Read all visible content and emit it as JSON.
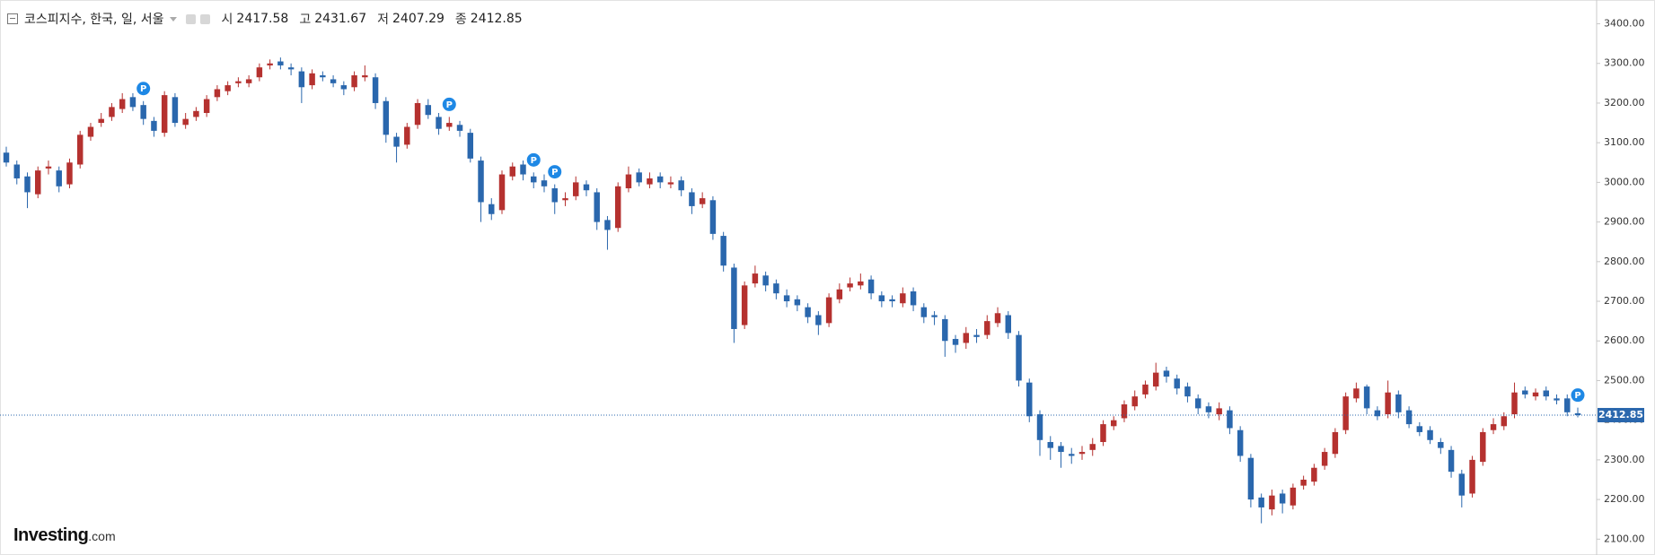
{
  "chart_data": {
    "type": "candlestick",
    "title": "코스피지수, 한국, 일, 서울",
    "header_labels": {
      "open": "시",
      "high": "고",
      "low": "저",
      "close": "종"
    },
    "up_color": "#b5312f",
    "down_color": "#2a67ad",
    "marker_color": "#1e88e5",
    "last_price_color": "#2a67ad",
    "ylim": [
      2060,
      3460
    ],
    "yticks": [
      {
        "value": 2100,
        "label": "2100.00"
      },
      {
        "value": 2200,
        "label": "2200.00"
      },
      {
        "value": 2300,
        "label": "2300.00"
      },
      {
        "value": 2400,
        "label": "2400.00"
      },
      {
        "value": 2500,
        "label": "2500.00"
      },
      {
        "value": 2600,
        "label": "2600.00"
      },
      {
        "value": 2700,
        "label": "2700.00"
      },
      {
        "value": 2800,
        "label": "2800.00"
      },
      {
        "value": 2900,
        "label": "2900.00"
      },
      {
        "value": 3000,
        "label": "3000.00"
      },
      {
        "value": 3100,
        "label": "3100.00"
      },
      {
        "value": 3200,
        "label": "3200.00"
      },
      {
        "value": 3300,
        "label": "3300.00"
      },
      {
        "value": 3400,
        "label": "3400.00"
      }
    ],
    "open": [
      3075,
      3045,
      3015,
      2970,
      3035,
      3030,
      2995,
      3045,
      3115,
      3150,
      3165,
      3185,
      3215,
      3195,
      3155,
      3125,
      3215,
      3145,
      3165,
      3175,
      3215,
      3230,
      3250,
      3250,
      3265,
      3295,
      3305,
      3290,
      3280,
      3245,
      3270,
      3260,
      3245,
      3240,
      3265,
      3265,
      3205,
      3115,
      3095,
      3145,
      3195,
      3165,
      3140,
      3145,
      3125,
      3055,
      2945,
      2930,
      3015,
      3045,
      3015,
      3005,
      2985,
      2955,
      2965,
      2995,
      2975,
      2905,
      2885,
      2985,
      3025,
      2995,
      3015,
      2995,
      3005,
      2975,
      2945,
      2955,
      2865,
      2785,
      2640,
      2745,
      2765,
      2745,
      2715,
      2705,
      2685,
      2665,
      2645,
      2705,
      2735,
      2740,
      2755,
      2715,
      2705,
      2695,
      2725,
      2685,
      2665,
      2655,
      2605,
      2595,
      2615,
      2615,
      2645,
      2665,
      2615,
      2495,
      2415,
      2345,
      2335,
      2315,
      2315,
      2325,
      2345,
      2385,
      2405,
      2435,
      2465,
      2485,
      2525,
      2505,
      2485,
      2455,
      2435,
      2415,
      2425,
      2375,
      2305,
      2205,
      2175,
      2215,
      2185,
      2235,
      2245,
      2285,
      2315,
      2375,
      2455,
      2485,
      2425,
      2415,
      2465,
      2425,
      2385,
      2375,
      2345,
      2325,
      2265,
      2215,
      2295,
      2375,
      2385,
      2415,
      2475,
      2460,
      2475,
      2455,
      2455,
      2417.58
    ],
    "high": [
      3090,
      3055,
      3025,
      3040,
      3055,
      3040,
      3060,
      3130,
      3150,
      3175,
      3200,
      3225,
      3225,
      3205,
      3165,
      3230,
      3225,
      3175,
      3190,
      3220,
      3245,
      3255,
      3265,
      3270,
      3300,
      3310,
      3315,
      3300,
      3290,
      3285,
      3280,
      3270,
      3255,
      3280,
      3295,
      3275,
      3215,
      3125,
      3150,
      3210,
      3210,
      3175,
      3165,
      3155,
      3135,
      3065,
      2960,
      3030,
      3050,
      3055,
      3025,
      3020,
      2995,
      2975,
      3015,
      3005,
      2985,
      2915,
      3000,
      3040,
      3035,
      3025,
      3025,
      3015,
      3015,
      2985,
      2975,
      2965,
      2875,
      2795,
      2750,
      2790,
      2775,
      2755,
      2730,
      2715,
      2695,
      2675,
      2720,
      2745,
      2760,
      2770,
      2765,
      2725,
      2715,
      2735,
      2735,
      2695,
      2675,
      2665,
      2615,
      2635,
      2630,
      2665,
      2685,
      2675,
      2625,
      2505,
      2425,
      2360,
      2345,
      2330,
      2335,
      2355,
      2400,
      2410,
      2450,
      2475,
      2500,
      2545,
      2535,
      2515,
      2495,
      2465,
      2445,
      2445,
      2435,
      2385,
      2315,
      2215,
      2225,
      2225,
      2240,
      2260,
      2290,
      2330,
      2380,
      2470,
      2495,
      2490,
      2435,
      2500,
      2475,
      2435,
      2395,
      2385,
      2355,
      2335,
      2275,
      2310,
      2380,
      2405,
      2420,
      2495,
      2485,
      2480,
      2485,
      2465,
      2465,
      2431.67
    ],
    "low": [
      3040,
      2995,
      2935,
      2960,
      3020,
      2975,
      2985,
      3035,
      3105,
      3140,
      3155,
      3175,
      3180,
      3145,
      3115,
      3115,
      3140,
      3135,
      3155,
      3165,
      3205,
      3220,
      3240,
      3240,
      3255,
      3285,
      3285,
      3270,
      3200,
      3235,
      3255,
      3240,
      3220,
      3230,
      3255,
      3185,
      3100,
      3050,
      3085,
      3135,
      3160,
      3120,
      3130,
      3115,
      3050,
      2900,
      2905,
      2920,
      3005,
      3005,
      2985,
      2975,
      2920,
      2940,
      2955,
      2965,
      2880,
      2830,
      2875,
      2975,
      2990,
      2985,
      2985,
      2985,
      2965,
      2920,
      2935,
      2855,
      2775,
      2595,
      2630,
      2735,
      2725,
      2705,
      2685,
      2675,
      2645,
      2615,
      2635,
      2695,
      2725,
      2730,
      2705,
      2685,
      2685,
      2685,
      2675,
      2645,
      2640,
      2560,
      2570,
      2580,
      2595,
      2605,
      2635,
      2605,
      2485,
      2395,
      2310,
      2300,
      2280,
      2290,
      2300,
      2310,
      2335,
      2375,
      2395,
      2425,
      2455,
      2475,
      2495,
      2465,
      2445,
      2415,
      2405,
      2400,
      2365,
      2295,
      2180,
      2140,
      2160,
      2165,
      2175,
      2225,
      2235,
      2275,
      2305,
      2365,
      2445,
      2415,
      2400,
      2405,
      2405,
      2380,
      2360,
      2340,
      2315,
      2255,
      2180,
      2205,
      2285,
      2365,
      2375,
      2405,
      2455,
      2450,
      2450,
      2440,
      2410,
      2407.29
    ],
    "close": [
      3050,
      3010,
      2975,
      3030,
      3040,
      2990,
      3050,
      3120,
      3140,
      3160,
      3190,
      3210,
      3190,
      3160,
      3130,
      3220,
      3150,
      3160,
      3180,
      3210,
      3235,
      3245,
      3255,
      3260,
      3290,
      3300,
      3295,
      3285,
      3240,
      3275,
      3265,
      3250,
      3235,
      3270,
      3270,
      3200,
      3120,
      3090,
      3140,
      3200,
      3170,
      3135,
      3150,
      3130,
      3060,
      2950,
      2920,
      3020,
      3040,
      3020,
      3000,
      2990,
      2950,
      2960,
      3000,
      2980,
      2900,
      2880,
      2990,
      3020,
      3000,
      3010,
      3000,
      3000,
      2980,
      2940,
      2960,
      2870,
      2790,
      2630,
      2740,
      2770,
      2740,
      2720,
      2700,
      2690,
      2660,
      2640,
      2710,
      2730,
      2745,
      2750,
      2720,
      2700,
      2700,
      2720,
      2690,
      2660,
      2660,
      2600,
      2590,
      2620,
      2610,
      2650,
      2670,
      2620,
      2500,
      2410,
      2350,
      2330,
      2320,
      2310,
      2320,
      2340,
      2390,
      2400,
      2440,
      2460,
      2490,
      2520,
      2510,
      2480,
      2460,
      2430,
      2420,
      2430,
      2380,
      2310,
      2200,
      2180,
      2210,
      2190,
      2230,
      2250,
      2280,
      2320,
      2370,
      2460,
      2480,
      2430,
      2410,
      2470,
      2420,
      2390,
      2370,
      2350,
      2330,
      2270,
      2210,
      2300,
      2370,
      2390,
      2410,
      2470,
      2465,
      2470,
      2460,
      2450,
      2420,
      2412.85
    ],
    "markers": [
      {
        "candle": 13,
        "label": "P"
      },
      {
        "candle": 42,
        "label": "P"
      },
      {
        "candle": 50,
        "label": "P"
      },
      {
        "candle": 52,
        "label": "P"
      },
      {
        "candle": 149,
        "label": "P"
      }
    ],
    "brand": "Investing",
    "brand_suffix": ".com"
  }
}
